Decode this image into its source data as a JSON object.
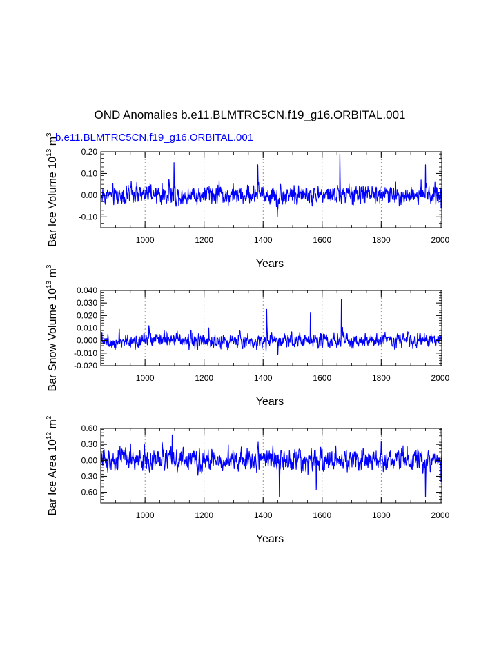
{
  "figure": {
    "title": "OND Anomalies b.e11.BLMTRC5CN.f19_g16.ORBITAL.001",
    "subtitle": "b.e11.BLMTRC5CN.f19_g16.ORBITAL.001",
    "line_color": "#0000ff"
  },
  "chart_data": [
    {
      "type": "line",
      "id": "bar-ice-volume",
      "ylabel": "Bar Ice Volume 10^13 m^3",
      "ylabel_parts": {
        "base": "Bar Ice Volume 10",
        "exp1": "13",
        "unit": " m",
        "exp2": "3"
      },
      "xlabel": "Years",
      "xlim": [
        850,
        2005
      ],
      "ylim": [
        -0.15,
        0.2
      ],
      "yticks": [
        -0.1,
        0.0,
        0.1,
        0.2
      ],
      "ytick_labels": [
        "-0.10",
        "0.00",
        "0.10",
        "0.20"
      ],
      "xticks": [
        1000,
        1200,
        1400,
        1600,
        1800,
        2000
      ],
      "xtick_labels": [
        "1000",
        "1200",
        "1400",
        "1600",
        "1800",
        "2000"
      ],
      "ygrid": false,
      "xgrid_dashed": true,
      "series": [
        {
          "name": "OND anomaly",
          "x_start": 850,
          "x_end": 2005,
          "amplitude": 0.035,
          "min": -0.11,
          "max": 0.19,
          "peaks": [
            {
              "x": 1098,
              "y": 0.15
            },
            {
              "x": 1382,
              "y": 0.14
            },
            {
              "x": 1448,
              "y": -0.1
            },
            {
              "x": 1660,
              "y": 0.19
            },
            {
              "x": 1950,
              "y": 0.14
            },
            {
              "x": 2003,
              "y": -0.06
            }
          ]
        }
      ]
    },
    {
      "type": "line",
      "id": "bar-snow-volume",
      "ylabel": "Bar Snow Volume 10^13 m^3",
      "ylabel_parts": {
        "base": "Bar Snow Volume 10",
        "exp1": "13",
        "unit": " m",
        "exp2": "3"
      },
      "xlabel": "Years",
      "xlim": [
        850,
        2005
      ],
      "ylim": [
        -0.02,
        0.04
      ],
      "yticks": [
        -0.02,
        -0.01,
        0.0,
        0.01,
        0.02,
        0.03,
        0.04
      ],
      "ytick_labels": [
        "-0.020",
        "-0.010",
        "0.000",
        "0.010",
        "0.020",
        "0.030",
        "0.040"
      ],
      "xticks": [
        1000,
        1200,
        1400,
        1600,
        1800,
        2000
      ],
      "xtick_labels": [
        "1000",
        "1200",
        "1400",
        "1600",
        "1800",
        "2000"
      ],
      "ygrid": false,
      "xgrid_dashed": true,
      "series": [
        {
          "name": "OND anomaly",
          "x_start": 850,
          "x_end": 2005,
          "amplitude": 0.0045,
          "min": -0.011,
          "max": 0.033,
          "peaks": [
            {
              "x": 1412,
              "y": 0.025
            },
            {
              "x": 1560,
              "y": 0.022
            },
            {
              "x": 1665,
              "y": 0.033
            },
            {
              "x": 1450,
              "y": -0.011
            }
          ]
        }
      ]
    },
    {
      "type": "line",
      "id": "bar-ice-area",
      "ylabel": "Bar Ice Area 10^12 m^2",
      "ylabel_parts": {
        "base": "Bar Ice Area 10",
        "exp1": "12",
        "unit": " m",
        "exp2": "2"
      },
      "xlabel": "Years",
      "xlim": [
        850,
        2005
      ],
      "ylim": [
        -0.8,
        0.6
      ],
      "yticks": [
        -0.6,
        -0.3,
        0.0,
        0.3,
        0.6
      ],
      "ytick_labels": [
        "-0.60",
        "-0.30",
        "0.00",
        "0.30",
        "0.60"
      ],
      "xticks": [
        1000,
        1200,
        1400,
        1600,
        1800,
        2000
      ],
      "xtick_labels": [
        "1000",
        "1200",
        "1400",
        "1600",
        "1800",
        "2000"
      ],
      "ygrid": false,
      "xgrid_dashed": true,
      "series": [
        {
          "name": "OND anomaly",
          "x_start": 850,
          "x_end": 2005,
          "amplitude": 0.16,
          "min": -0.7,
          "max": 0.5,
          "peaks": [
            {
              "x": 1092,
              "y": 0.48
            },
            {
              "x": 1455,
              "y": -0.68
            },
            {
              "x": 1950,
              "y": -0.69
            },
            {
              "x": 1580,
              "y": -0.55
            },
            {
              "x": 2003,
              "y": -0.4
            }
          ]
        }
      ]
    }
  ]
}
